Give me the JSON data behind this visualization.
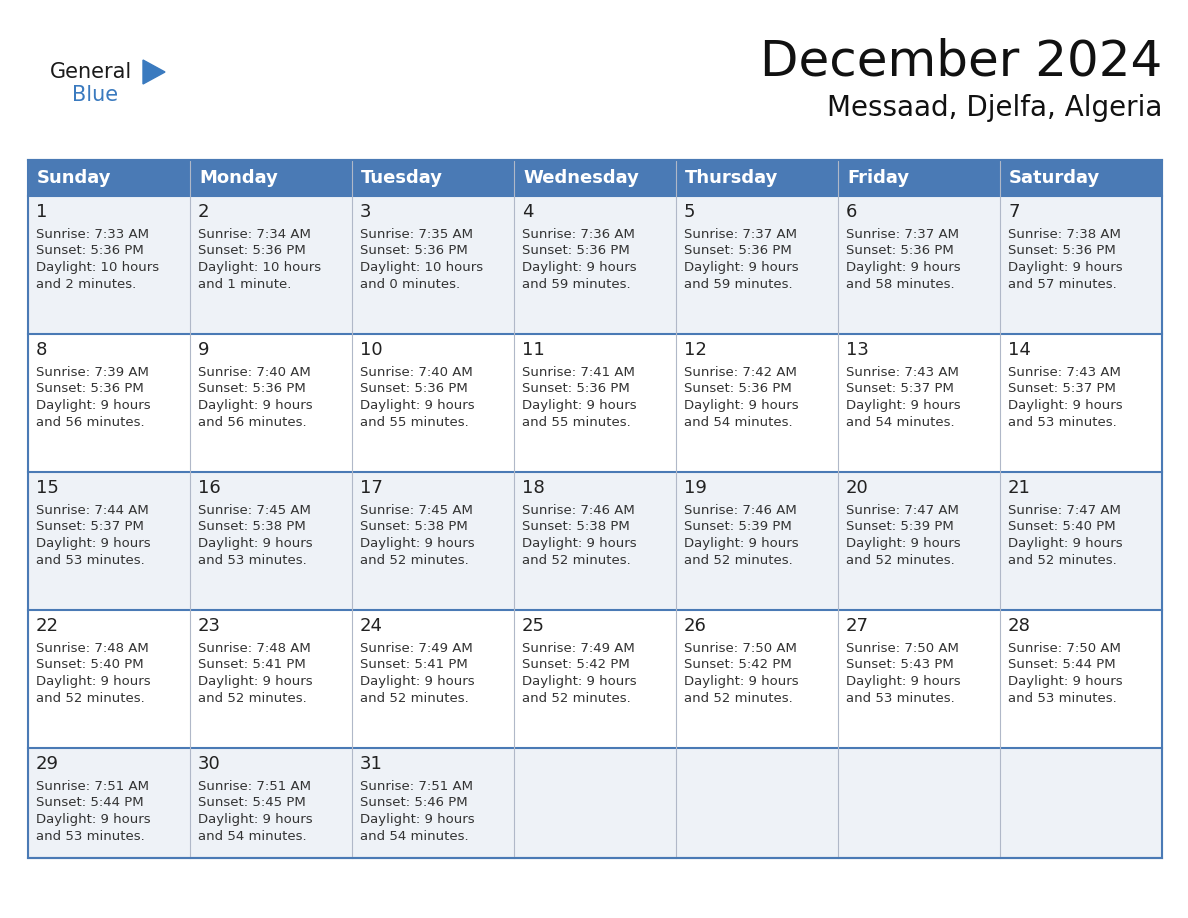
{
  "title": "December 2024",
  "subtitle": "Messaad, Djelfa, Algeria",
  "header_color": "#4a7ab5",
  "header_text_color": "#ffffff",
  "cell_bg_even": "#eef2f7",
  "cell_bg_odd": "#ffffff",
  "empty_cell_bg": "#eef2f7",
  "day_names": [
    "Sunday",
    "Monday",
    "Tuesday",
    "Wednesday",
    "Thursday",
    "Friday",
    "Saturday"
  ],
  "weeks": [
    [
      {
        "day": 1,
        "sunrise": "7:33 AM",
        "sunset": "5:36 PM",
        "daylight": "10 hours",
        "daylight2": "and 2 minutes."
      },
      {
        "day": 2,
        "sunrise": "7:34 AM",
        "sunset": "5:36 PM",
        "daylight": "10 hours",
        "daylight2": "and 1 minute."
      },
      {
        "day": 3,
        "sunrise": "7:35 AM",
        "sunset": "5:36 PM",
        "daylight": "10 hours",
        "daylight2": "and 0 minutes."
      },
      {
        "day": 4,
        "sunrise": "7:36 AM",
        "sunset": "5:36 PM",
        "daylight": "9 hours",
        "daylight2": "and 59 minutes."
      },
      {
        "day": 5,
        "sunrise": "7:37 AM",
        "sunset": "5:36 PM",
        "daylight": "9 hours",
        "daylight2": "and 59 minutes."
      },
      {
        "day": 6,
        "sunrise": "7:37 AM",
        "sunset": "5:36 PM",
        "daylight": "9 hours",
        "daylight2": "and 58 minutes."
      },
      {
        "day": 7,
        "sunrise": "7:38 AM",
        "sunset": "5:36 PM",
        "daylight": "9 hours",
        "daylight2": "and 57 minutes."
      }
    ],
    [
      {
        "day": 8,
        "sunrise": "7:39 AM",
        "sunset": "5:36 PM",
        "daylight": "9 hours",
        "daylight2": "and 56 minutes."
      },
      {
        "day": 9,
        "sunrise": "7:40 AM",
        "sunset": "5:36 PM",
        "daylight": "9 hours",
        "daylight2": "and 56 minutes."
      },
      {
        "day": 10,
        "sunrise": "7:40 AM",
        "sunset": "5:36 PM",
        "daylight": "9 hours",
        "daylight2": "and 55 minutes."
      },
      {
        "day": 11,
        "sunrise": "7:41 AM",
        "sunset": "5:36 PM",
        "daylight": "9 hours",
        "daylight2": "and 55 minutes."
      },
      {
        "day": 12,
        "sunrise": "7:42 AM",
        "sunset": "5:36 PM",
        "daylight": "9 hours",
        "daylight2": "and 54 minutes."
      },
      {
        "day": 13,
        "sunrise": "7:43 AM",
        "sunset": "5:37 PM",
        "daylight": "9 hours",
        "daylight2": "and 54 minutes."
      },
      {
        "day": 14,
        "sunrise": "7:43 AM",
        "sunset": "5:37 PM",
        "daylight": "9 hours",
        "daylight2": "and 53 minutes."
      }
    ],
    [
      {
        "day": 15,
        "sunrise": "7:44 AM",
        "sunset": "5:37 PM",
        "daylight": "9 hours",
        "daylight2": "and 53 minutes."
      },
      {
        "day": 16,
        "sunrise": "7:45 AM",
        "sunset": "5:38 PM",
        "daylight": "9 hours",
        "daylight2": "and 53 minutes."
      },
      {
        "day": 17,
        "sunrise": "7:45 AM",
        "sunset": "5:38 PM",
        "daylight": "9 hours",
        "daylight2": "and 52 minutes."
      },
      {
        "day": 18,
        "sunrise": "7:46 AM",
        "sunset": "5:38 PM",
        "daylight": "9 hours",
        "daylight2": "and 52 minutes."
      },
      {
        "day": 19,
        "sunrise": "7:46 AM",
        "sunset": "5:39 PM",
        "daylight": "9 hours",
        "daylight2": "and 52 minutes."
      },
      {
        "day": 20,
        "sunrise": "7:47 AM",
        "sunset": "5:39 PM",
        "daylight": "9 hours",
        "daylight2": "and 52 minutes."
      },
      {
        "day": 21,
        "sunrise": "7:47 AM",
        "sunset": "5:40 PM",
        "daylight": "9 hours",
        "daylight2": "and 52 minutes."
      }
    ],
    [
      {
        "day": 22,
        "sunrise": "7:48 AM",
        "sunset": "5:40 PM",
        "daylight": "9 hours",
        "daylight2": "and 52 minutes."
      },
      {
        "day": 23,
        "sunrise": "7:48 AM",
        "sunset": "5:41 PM",
        "daylight": "9 hours",
        "daylight2": "and 52 minutes."
      },
      {
        "day": 24,
        "sunrise": "7:49 AM",
        "sunset": "5:41 PM",
        "daylight": "9 hours",
        "daylight2": "and 52 minutes."
      },
      {
        "day": 25,
        "sunrise": "7:49 AM",
        "sunset": "5:42 PM",
        "daylight": "9 hours",
        "daylight2": "and 52 minutes."
      },
      {
        "day": 26,
        "sunrise": "7:50 AM",
        "sunset": "5:42 PM",
        "daylight": "9 hours",
        "daylight2": "and 52 minutes."
      },
      {
        "day": 27,
        "sunrise": "7:50 AM",
        "sunset": "5:43 PM",
        "daylight": "9 hours",
        "daylight2": "and 53 minutes."
      },
      {
        "day": 28,
        "sunrise": "7:50 AM",
        "sunset": "5:44 PM",
        "daylight": "9 hours",
        "daylight2": "and 53 minutes."
      }
    ],
    [
      {
        "day": 29,
        "sunrise": "7:51 AM",
        "sunset": "5:44 PM",
        "daylight": "9 hours",
        "daylight2": "and 53 minutes."
      },
      {
        "day": 30,
        "sunrise": "7:51 AM",
        "sunset": "5:45 PM",
        "daylight": "9 hours",
        "daylight2": "and 54 minutes."
      },
      {
        "day": 31,
        "sunrise": "7:51 AM",
        "sunset": "5:46 PM",
        "daylight": "9 hours",
        "daylight2": "and 54 minutes."
      },
      null,
      null,
      null,
      null
    ]
  ],
  "logo_color_general": "#1a1a1a",
  "logo_color_blue": "#3a7abf",
  "logo_triangle_color": "#3a7abf",
  "title_fontsize": 36,
  "subtitle_fontsize": 20,
  "header_fontsize": 13,
  "cell_day_fontsize": 13,
  "cell_text_fontsize": 9.5
}
